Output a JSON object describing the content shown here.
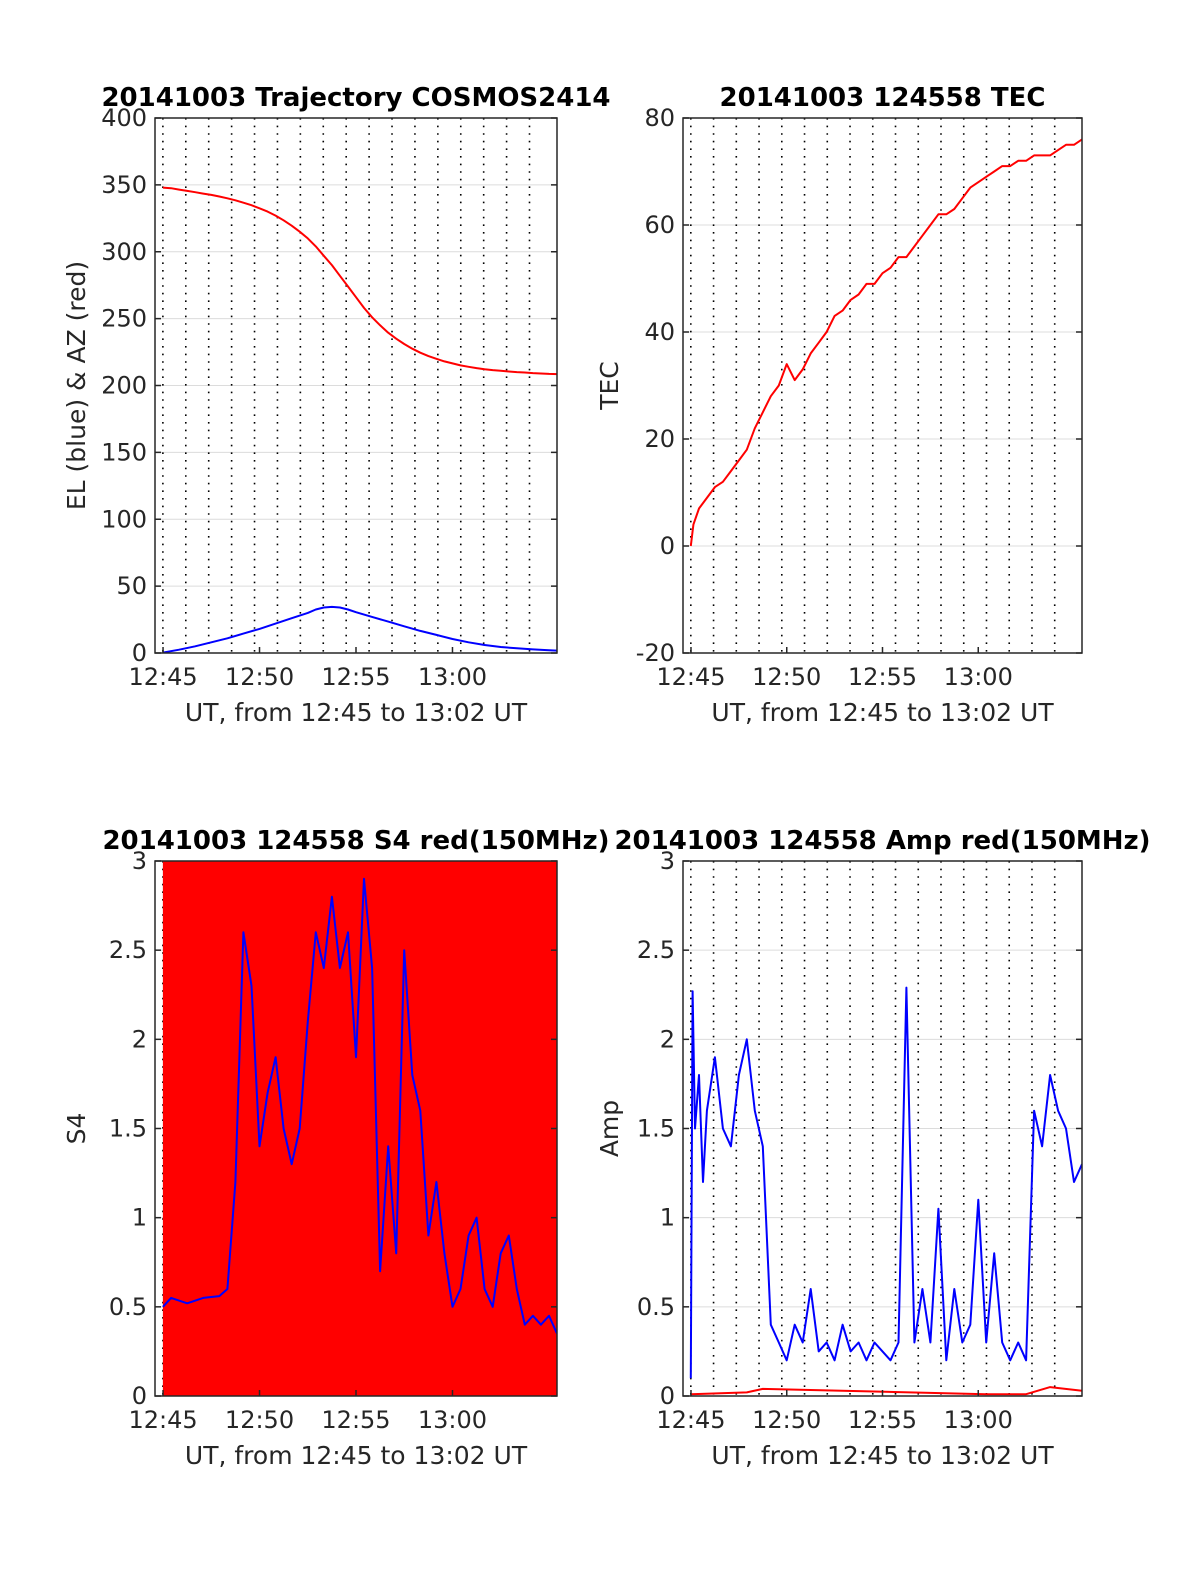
{
  "chart_data": [
    {
      "type": "line",
      "title": "20141003 Trajectory COSMOS2414",
      "xlabel": "UT, from 12:45 to 13:02 UT",
      "ylabel": "EL (blue) & AZ (red)",
      "xticks": [
        "12:45",
        "12:50",
        "12:55",
        "13:00"
      ],
      "yticks": [
        "0",
        "50",
        "100",
        "150",
        "200",
        "250",
        "300",
        "350",
        "400"
      ],
      "ylim": [
        0,
        400
      ],
      "grid": true,
      "series": [
        {
          "color": "#ff0000",
          "x": [
            12.98,
            14,
            15,
            16,
            17,
            18,
            19,
            20,
            21,
            22,
            23,
            24,
            25,
            26,
            27,
            28,
            29,
            30,
            31,
            32,
            33,
            34,
            35,
            36,
            37,
            38,
            39,
            40,
            41,
            42,
            43,
            44,
            45,
            46,
            47,
            48,
            49,
            50,
            51,
            52,
            53,
            54,
            55,
            56,
            57,
            58,
            59,
            60,
            61,
            62
          ],
          "values": [
            348,
            347.5,
            346.5,
            345.5,
            344.5,
            343.5,
            342.5,
            341.3,
            340,
            338.5,
            336.7,
            334.8,
            332.5,
            330,
            327,
            323.5,
            319.5,
            315,
            310,
            304,
            297,
            290,
            282,
            274,
            266,
            258,
            251,
            245,
            239.5,
            235,
            231,
            227.5,
            224.5,
            222,
            220,
            218,
            216.5,
            215,
            214,
            213,
            212.2,
            211.5,
            211,
            210.5,
            210,
            209.7,
            209.3,
            209,
            208.7,
            208.5
          ]
        },
        {
          "color": "#0000ff",
          "x": [
            12.98,
            15,
            17,
            19,
            21,
            23,
            25,
            27,
            29,
            31,
            32,
            33,
            34,
            35,
            36,
            37,
            39,
            41,
            43,
            45,
            47,
            49,
            51,
            53,
            55,
            57,
            59,
            61,
            62
          ],
          "values": [
            0.3,
            2.5,
            5,
            8,
            11,
            14.5,
            18,
            22,
            26,
            30,
            32.5,
            34,
            34.5,
            34,
            32.5,
            30.5,
            27,
            23.5,
            20,
            16.5,
            13.5,
            10.5,
            8,
            6,
            4.5,
            3.5,
            2.7,
            2,
            1.8
          ]
        }
      ]
    },
    {
      "type": "line",
      "title": "20141003 124558 TEC",
      "xlabel": "UT, from 12:45 to 13:02 UT",
      "ylabel": "TEC",
      "xticks": [
        "12:45",
        "12:50",
        "12:55",
        "13:00"
      ],
      "yticks": [
        "-20",
        "0",
        "20",
        "40",
        "60",
        "80"
      ],
      "ylim": [
        -20,
        80
      ],
      "grid": true,
      "series": [
        {
          "color": "#ff0000",
          "x": [
            12.98,
            13.3,
            14,
            15,
            16,
            17,
            18,
            19,
            20,
            21,
            22,
            23,
            24,
            25,
            26,
            27,
            28,
            29,
            30,
            31,
            32,
            33,
            34,
            35,
            36,
            37,
            38,
            39,
            40,
            41,
            42,
            43,
            44,
            45,
            46,
            47,
            48,
            49,
            50,
            51,
            52,
            53,
            54,
            55,
            56,
            57,
            58,
            59,
            60,
            61,
            62
          ],
          "values": [
            0,
            4,
            7,
            9,
            11,
            12,
            14,
            16,
            18,
            22,
            25,
            28,
            30,
            34,
            31,
            33,
            36,
            38,
            40,
            43,
            44,
            46,
            47,
            49,
            49,
            51,
            52,
            54,
            54,
            56,
            58,
            60,
            62,
            62,
            63,
            65,
            67,
            68,
            69,
            70,
            71,
            71,
            72,
            72,
            73,
            73,
            73,
            74,
            75,
            75,
            76
          ]
        }
      ]
    },
    {
      "type": "line",
      "title": "20141003 124558 S4 red(150MHz)",
      "xlabel": "UT, from 12:45 to 13:02 UT",
      "ylabel": "S4",
      "xticks": [
        "12:45",
        "12:50",
        "12:55",
        "13:00"
      ],
      "yticks": [
        "0",
        "0.5",
        "1",
        "1.5",
        "2",
        "2.5",
        "3"
      ],
      "ylim": [
        0,
        3
      ],
      "grid": true,
      "series": [
        {
          "color": "#ff0000",
          "x": [
            12.98,
            62
          ],
          "values": [
            3,
            3
          ]
        },
        {
          "color": "#0000ff",
          "x": [
            12.98,
            14,
            16,
            18,
            20,
            21,
            22,
            23,
            24,
            25,
            26,
            27,
            28,
            29,
            30,
            31,
            32,
            33,
            34,
            35,
            36,
            37,
            38,
            39,
            40,
            41,
            42,
            43,
            44,
            45,
            46,
            47,
            48,
            49,
            50,
            51,
            52,
            53,
            54,
            55,
            56,
            57,
            58,
            59,
            60,
            61,
            62
          ],
          "values": [
            0.5,
            0.55,
            0.52,
            0.55,
            0.56,
            0.6,
            1.2,
            2.6,
            2.3,
            1.4,
            1.7,
            1.9,
            1.5,
            1.3,
            1.5,
            2.1,
            2.6,
            2.4,
            2.8,
            2.4,
            2.6,
            1.9,
            2.9,
            2.4,
            0.7,
            1.4,
            0.8,
            2.5,
            1.8,
            1.6,
            0.9,
            1.2,
            0.8,
            0.5,
            0.6,
            0.9,
            1.0,
            0.6,
            0.5,
            0.8,
            0.9,
            0.6,
            0.4,
            0.45,
            0.4,
            0.45,
            0.35
          ]
        }
      ]
    },
    {
      "type": "line",
      "title": "20141003 124558 Amp red(150MHz)",
      "xlabel": "UT, from 12:45 to 13:02 UT",
      "ylabel": "Amp",
      "xticks": [
        "12:45",
        "12:50",
        "12:55",
        "13:00"
      ],
      "yticks": [
        "0",
        "0.5",
        "1",
        "1.5",
        "2",
        "2.5",
        "3"
      ],
      "ylim": [
        0,
        3
      ],
      "grid": true,
      "series": [
        {
          "color": "#0000ff",
          "x": [
            12.98,
            13.2,
            13.5,
            14,
            14.5,
            15,
            16,
            17,
            18,
            19,
            20,
            21,
            22,
            23,
            24,
            25,
            26,
            27,
            28,
            29,
            30,
            31,
            32,
            33,
            34,
            35,
            36,
            37,
            38,
            39,
            40,
            41,
            42,
            43,
            44,
            45,
            46,
            47,
            48,
            49,
            50,
            51,
            52,
            53,
            54,
            55,
            56,
            57,
            58,
            59,
            60,
            61,
            62
          ],
          "values": [
            0.1,
            2.27,
            1.5,
            1.8,
            1.2,
            1.6,
            1.9,
            1.5,
            1.4,
            1.8,
            2.0,
            1.6,
            1.4,
            0.4,
            0.3,
            0.2,
            0.4,
            0.3,
            0.6,
            0.25,
            0.3,
            0.2,
            0.4,
            0.25,
            0.3,
            0.2,
            0.3,
            0.25,
            0.2,
            0.3,
            2.29,
            0.3,
            0.6,
            0.3,
            1.05,
            0.2,
            0.6,
            0.3,
            0.4,
            1.1,
            0.3,
            0.8,
            0.3,
            0.2,
            0.3,
            0.2,
            1.6,
            1.4,
            1.8,
            1.6,
            1.5,
            1.2,
            1.3
          ]
        },
        {
          "color": "#ff0000",
          "x": [
            12.98,
            20,
            22,
            50,
            55,
            58,
            62
          ],
          "values": [
            0.01,
            0.02,
            0.04,
            0.01,
            0.01,
            0.05,
            0.03
          ]
        }
      ]
    }
  ]
}
